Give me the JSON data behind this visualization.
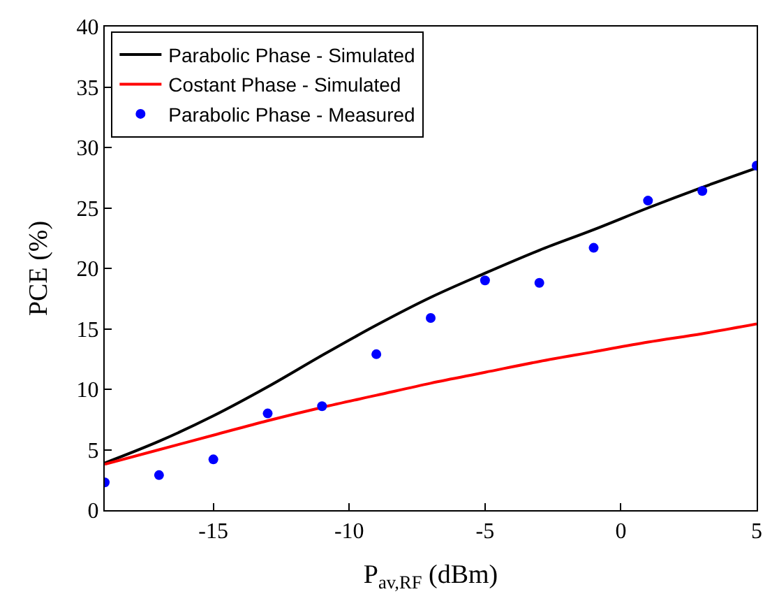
{
  "chart_data": {
    "type": "line",
    "xlabel": "P$_{av,RF}$ (dBm)",
    "ylabel": "PCE (%)",
    "xlim": [
      -19,
      5
    ],
    "xticks": [
      -15,
      -10,
      -5,
      0,
      5
    ],
    "ylim": [
      0,
      40
    ],
    "yticks": [
      0,
      5,
      10,
      15,
      20,
      25,
      30,
      35,
      40
    ],
    "legend": "top left",
    "series": [
      {
        "name": "Parabolic Phase - Simulated",
        "color": "#000000",
        "x": [
          -19,
          -17,
          -15,
          -13,
          -11,
          -9,
          -7,
          -5,
          -3,
          -1,
          1,
          3,
          5
        ],
        "values": [
          3.9,
          5.7,
          7.8,
          10.2,
          12.8,
          15.3,
          17.6,
          19.6,
          21.5,
          23.2,
          25.0,
          26.7,
          28.3
        ]
      },
      {
        "name": "Costant Phase - Simulated",
        "color": "#ff0000",
        "x": [
          -19,
          -17,
          -15,
          -13,
          -11,
          -9,
          -7,
          -5,
          -3,
          -1,
          1,
          3,
          5
        ],
        "values": [
          3.8,
          5.0,
          6.2,
          7.4,
          8.5,
          9.5,
          10.5,
          11.4,
          12.3,
          13.1,
          13.9,
          14.6,
          15.4
        ]
      },
      {
        "name": "Parabolic Phase - Measured",
        "color": "#0000ff",
        "type": "scatter",
        "marker": "circle",
        "x": [
          -19,
          -17,
          -15,
          -13,
          -11,
          -9,
          -7,
          -5,
          -3,
          -1,
          1,
          3,
          5
        ],
        "values": [
          2.3,
          2.9,
          4.2,
          8.0,
          8.6,
          12.9,
          15.9,
          19.0,
          18.8,
          21.7,
          25.6,
          26.4,
          28.5
        ]
      }
    ]
  }
}
